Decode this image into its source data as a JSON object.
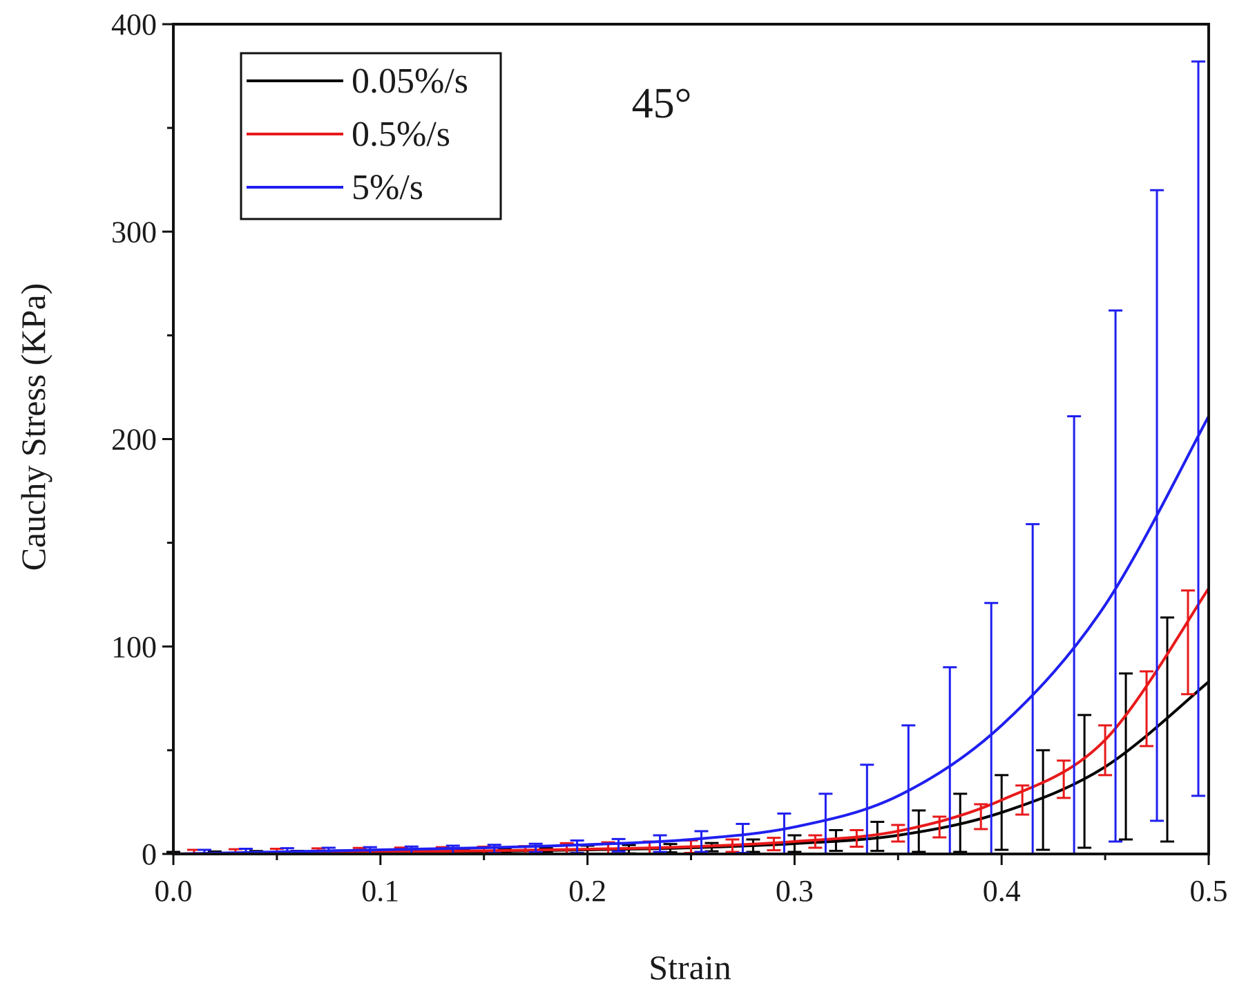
{
  "chart_data": {
    "type": "line",
    "title": "",
    "annotation": "45°",
    "xlabel": "Strain",
    "ylabel": "Cauchy Stress (KPa)",
    "xlim": [
      0,
      0.5
    ],
    "ylim": [
      0,
      400
    ],
    "xticks": [
      0.0,
      0.1,
      0.2,
      0.3,
      0.4,
      0.5
    ],
    "xtick_labels": [
      "0.0",
      "0.1",
      "0.2",
      "0.3",
      "0.4",
      "0.5"
    ],
    "yticks": [
      0,
      100,
      200,
      300,
      400
    ],
    "ytick_labels": [
      "0",
      "100",
      "200",
      "300",
      "400"
    ],
    "grid": false,
    "legend_position": "top-left",
    "series": [
      {
        "name": "0.05%/s",
        "color": "#000000",
        "x": [
          0.0,
          0.05,
          0.1,
          0.15,
          0.2,
          0.25,
          0.3,
          0.35,
          0.4,
          0.45,
          0.5
        ],
        "y": [
          0,
          0.3,
          0.7,
          1.2,
          2.0,
          3.0,
          5.0,
          9.0,
          20.0,
          42.0,
          83.0
        ],
        "error_x": [
          0.0,
          0.02,
          0.04,
          0.06,
          0.08,
          0.1,
          0.12,
          0.14,
          0.16,
          0.18,
          0.2,
          0.22,
          0.24,
          0.26,
          0.28,
          0.3,
          0.32,
          0.34,
          0.36,
          0.38,
          0.4,
          0.42,
          0.44,
          0.46,
          0.48
        ],
        "error_y": [
          0,
          0.2,
          0.4,
          0.5,
          0.7,
          0.9,
          1.0,
          1.2,
          1.5,
          1.8,
          2.0,
          2.3,
          2.8,
          3.3,
          4.0,
          5.0,
          6.5,
          8.5,
          11.0,
          15.0,
          20.0,
          26.0,
          35.0,
          47.0,
          60.0
        ],
        "error_plus": [
          1,
          1,
          1,
          1,
          1,
          1,
          1,
          1,
          1,
          1,
          2,
          2,
          2,
          2,
          3,
          4,
          5,
          7,
          10,
          14,
          18,
          24,
          32,
          40,
          54
        ],
        "error_minus": [
          1,
          1,
          1,
          1,
          1,
          1,
          1,
          1,
          1,
          1,
          2,
          2,
          2,
          2,
          3,
          4,
          5,
          7,
          10,
          14,
          18,
          24,
          32,
          40,
          54
        ]
      },
      {
        "name": "0.5%/s",
        "color": "#e8191a",
        "x": [
          0.0,
          0.05,
          0.1,
          0.15,
          0.2,
          0.25,
          0.3,
          0.35,
          0.4,
          0.45,
          0.5
        ],
        "y": [
          0,
          0.5,
          1.0,
          1.5,
          2.3,
          3.5,
          6.0,
          11.0,
          26.0,
          55.0,
          128.0
        ],
        "error_x": [
          0.01,
          0.03,
          0.05,
          0.07,
          0.09,
          0.11,
          0.13,
          0.15,
          0.17,
          0.19,
          0.21,
          0.23,
          0.25,
          0.27,
          0.29,
          0.31,
          0.33,
          0.35,
          0.37,
          0.39,
          0.41,
          0.43,
          0.45,
          0.47,
          0.49
        ],
        "error_y": [
          0,
          0.3,
          0.5,
          0.7,
          0.9,
          1.1,
          1.3,
          1.5,
          1.8,
          2.2,
          2.6,
          3.0,
          3.5,
          4.0,
          4.8,
          6.0,
          7.5,
          10.0,
          13.0,
          18.0,
          26.0,
          36.0,
          50.0,
          70.0,
          102.0
        ],
        "error_plus": [
          2,
          2,
          2,
          2,
          2,
          2,
          2,
          2,
          2,
          3,
          3,
          3,
          3,
          3,
          3,
          3,
          4,
          4,
          5,
          6,
          7,
          9,
          12,
          18,
          25
        ],
        "error_minus": [
          2,
          2,
          2,
          2,
          2,
          2,
          2,
          2,
          2,
          3,
          3,
          3,
          3,
          3,
          3,
          3,
          4,
          4,
          5,
          6,
          7,
          9,
          12,
          18,
          25
        ]
      },
      {
        "name": "5%/s",
        "color": "#1f1ff0",
        "x": [
          0.0,
          0.05,
          0.1,
          0.15,
          0.2,
          0.25,
          0.3,
          0.35,
          0.4,
          0.45,
          0.5
        ],
        "y": [
          0,
          1.0,
          2.0,
          3.0,
          4.5,
          7.0,
          13.0,
          28.0,
          62.0,
          120.0,
          211.0
        ],
        "error_x": [
          0.015,
          0.035,
          0.055,
          0.075,
          0.095,
          0.115,
          0.135,
          0.155,
          0.175,
          0.195,
          0.215,
          0.235,
          0.255,
          0.275,
          0.295,
          0.315,
          0.335,
          0.355,
          0.375,
          0.395,
          0.415,
          0.435,
          0.455,
          0.475,
          0.495
        ],
        "error_y": [
          0,
          0.5,
          0.8,
          1.0,
          1.3,
          1.6,
          2.0,
          2.4,
          2.9,
          3.5,
          4.2,
          5.0,
          6.0,
          7.5,
          9.5,
          13.0,
          19.0,
          27.0,
          39.0,
          55.0,
          77.0,
          103.0,
          134.0,
          168.0,
          205.0
        ],
        "error_plus": [
          2,
          2,
          2,
          2,
          2,
          2,
          2,
          2,
          2,
          3,
          3,
          4,
          5,
          7,
          10,
          16,
          24,
          35,
          51,
          66,
          82,
          108,
          128,
          152,
          177
        ],
        "error_minus": [
          2,
          2,
          2,
          2,
          2,
          2,
          2,
          2,
          2,
          3,
          3,
          4,
          5,
          7,
          10,
          16,
          24,
          35,
          51,
          66,
          82,
          108,
          128,
          152,
          177
        ]
      }
    ]
  }
}
